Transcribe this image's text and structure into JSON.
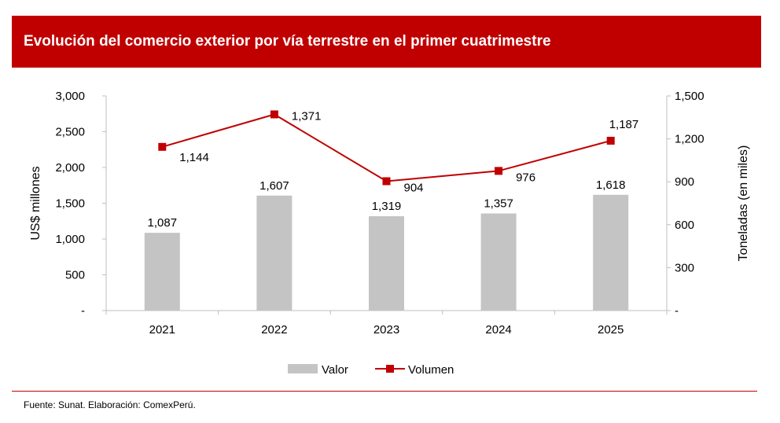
{
  "chart_data": {
    "type": "bar+line",
    "title": "Evolución del comercio exterior por vía terrestre en el primer cuatrimestre",
    "categories": [
      "2021",
      "2022",
      "2023",
      "2024",
      "2025"
    ],
    "series": [
      {
        "name": "Valor",
        "type": "bar",
        "axis": "left",
        "values": [
          1087,
          1607,
          1319,
          1357,
          1618
        ],
        "labels": [
          "1,087",
          "1,607",
          "1,319",
          "1,357",
          "1,618"
        ],
        "color": "#C4C4C4"
      },
      {
        "name": "Volumen",
        "type": "line",
        "axis": "right",
        "values": [
          1144,
          1371,
          904,
          976,
          1187
        ],
        "labels": [
          "1,144",
          "1,371",
          "904",
          "976",
          "1,187"
        ],
        "color": "#C00000",
        "marker": "square"
      }
    ],
    "ylabel": "US$ millones",
    "ylim": [
      0,
      3000
    ],
    "yticks": [
      "-",
      "500",
      "1,000",
      "1,500",
      "2,000",
      "2,500",
      "3,000"
    ],
    "y2label": "Toneladas (en miles)",
    "y2lim": [
      0,
      1500
    ],
    "y2ticks": [
      "-",
      "300",
      "600",
      "900",
      "1,200",
      "1,500"
    ],
    "legend": "bottom",
    "grid": false
  },
  "source": "Fuente: Sunat. Elaboración: ComexPerú."
}
